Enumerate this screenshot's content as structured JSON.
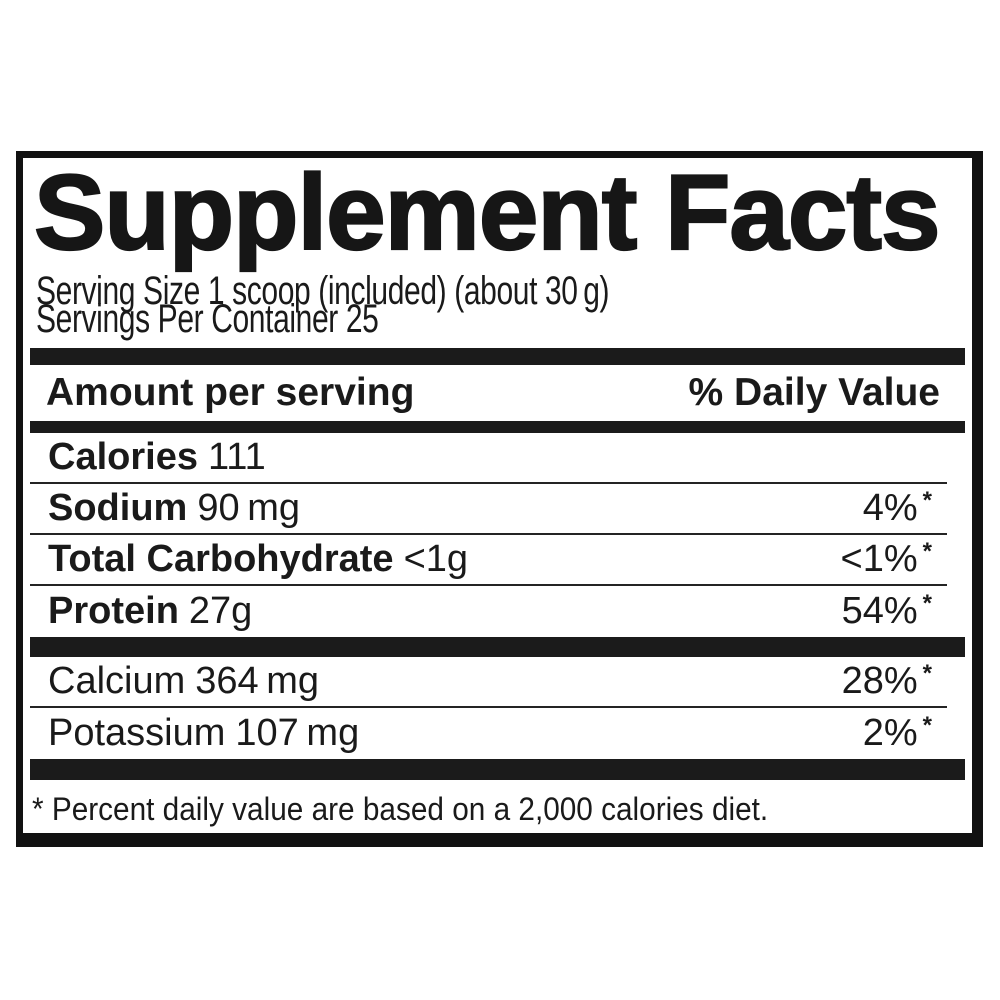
{
  "label": {
    "title": "Supplement Facts",
    "serving_size_line": "Serving Size 1 scoop (included) (about 30 g)",
    "servings_per_container_line": "Servings Per Container 25",
    "header": {
      "amount_label": "Amount per serving",
      "daily_value_label": "% Daily Value"
    },
    "main_rows": [
      {
        "name": "Calories",
        "amount": "111",
        "dv": "",
        "asterisk": "",
        "bold": true
      },
      {
        "name": "Sodium",
        "amount": "90 mg",
        "dv": "4%",
        "asterisk": "*",
        "bold": true
      },
      {
        "name": "Total Carbohydrate",
        "amount": "<1g",
        "dv": "<1%",
        "asterisk": "*",
        "bold": true
      },
      {
        "name": "Protein",
        "amount": "27g",
        "dv": "54%",
        "asterisk": "*",
        "bold": true
      }
    ],
    "mineral_rows": [
      {
        "name": "Calcium",
        "amount": "364 mg",
        "dv": "28%",
        "asterisk": "*",
        "bold": false
      },
      {
        "name": "Potassium",
        "amount": "107 mg",
        "dv": "2%",
        "asterisk": "*",
        "bold": false
      }
    ],
    "footnote": "* Percent daily value are based on a 2,000 calories diet.",
    "colors": {
      "ink": "#1a1a1a",
      "bar": "#1b1b1b",
      "background": "#ffffff"
    }
  }
}
